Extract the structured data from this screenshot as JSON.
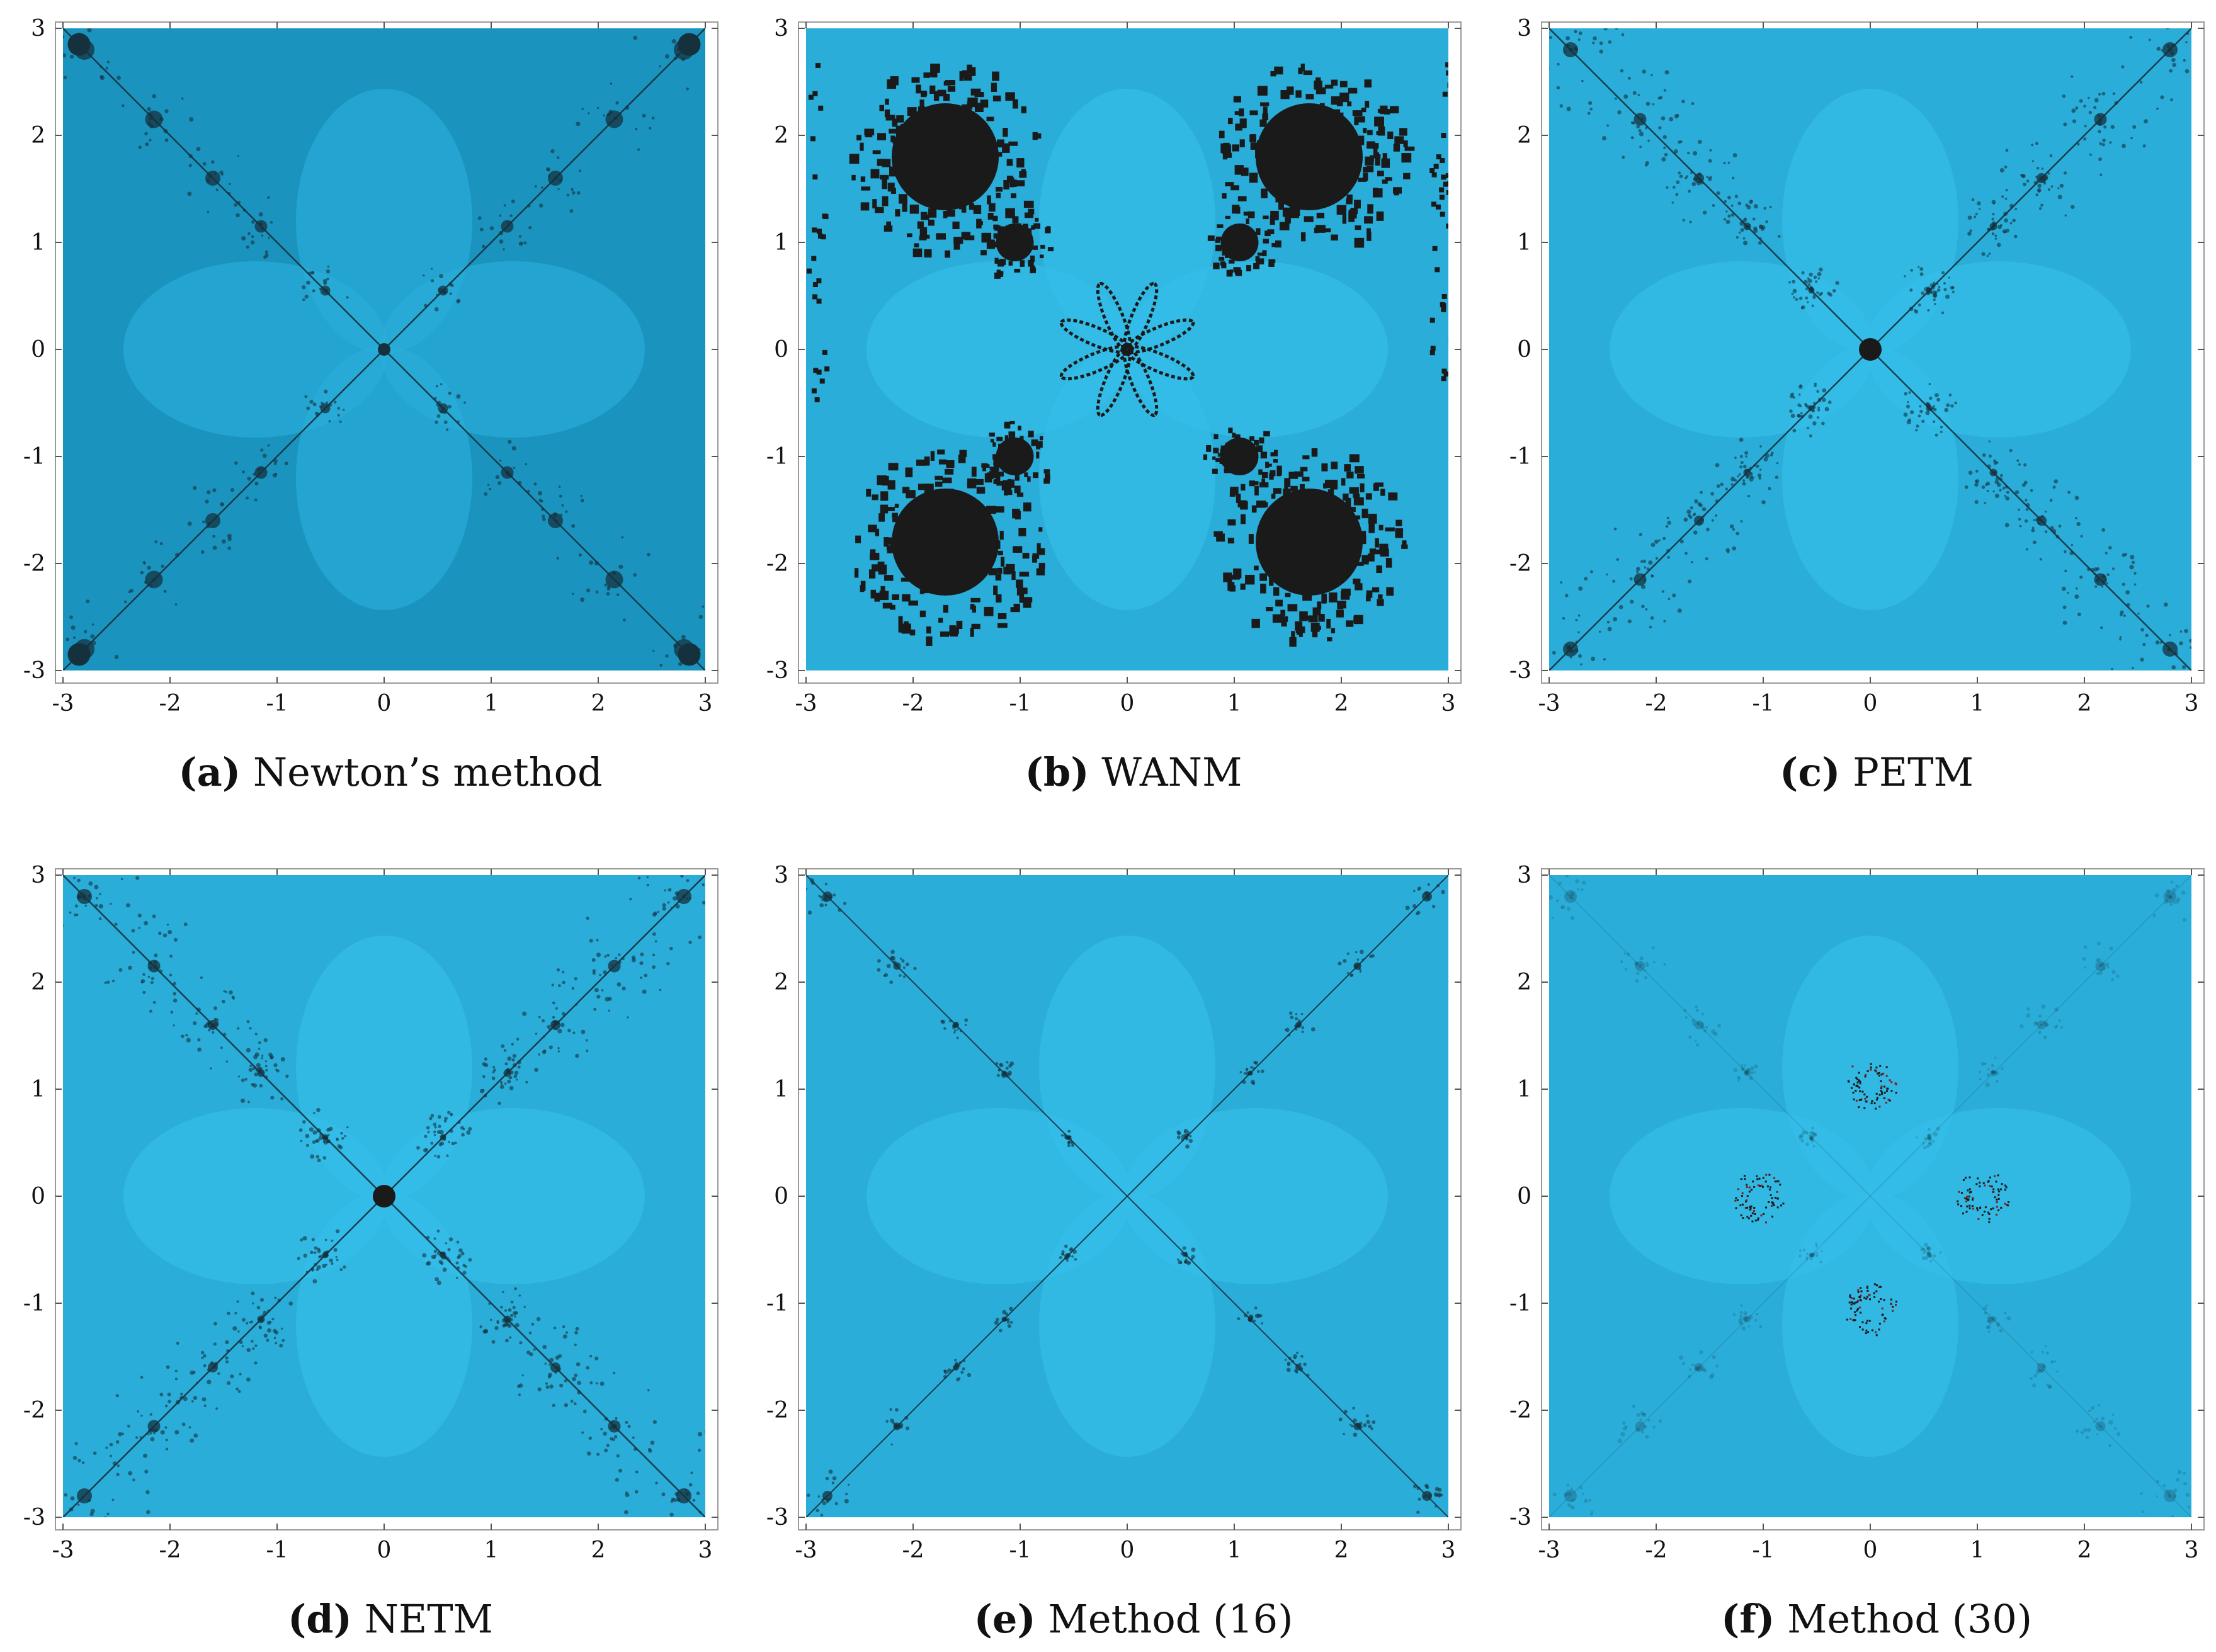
{
  "figure": {
    "panels": [
      {
        "id": "a",
        "letter_open": "(",
        "letter": "a",
        "letter_close": ")",
        "caption": "Newton’s method",
        "style": "newton"
      },
      {
        "id": "b",
        "letter_open": "(",
        "letter": "b",
        "letter_close": ")",
        "caption": "WANM",
        "style": "wanm"
      },
      {
        "id": "c",
        "letter_open": "(",
        "letter": "c",
        "letter_close": ")",
        "caption": "PETM",
        "style": "petm"
      },
      {
        "id": "d",
        "letter_open": "(",
        "letter": "d",
        "letter_close": ")",
        "caption": "NETM",
        "style": "netm"
      },
      {
        "id": "e",
        "letter_open": "(",
        "letter": "e",
        "letter_close": ")",
        "caption": "Method (16)",
        "style": "method16"
      },
      {
        "id": "f",
        "letter_open": "(",
        "letter": "f",
        "letter_close": ")",
        "caption": "Method (30)",
        "style": "method30"
      }
    ],
    "colors": {
      "basin_light": "#35bde8",
      "basin_mid": "#2aadd8",
      "basin_dark": "#1a94bf",
      "julia": "#15313d",
      "black": "#1a1a1a"
    }
  },
  "chart_data": [
    {
      "type": "heatmap",
      "panel": "a",
      "title": "Newton’s method",
      "xlim": [
        -3,
        3
      ],
      "ylim": [
        -3,
        3
      ],
      "xticks": [
        "-3",
        "-2",
        "-1",
        "0",
        "1",
        "2",
        "3"
      ],
      "yticks": [
        "3",
        "2",
        "1",
        "0",
        "-1",
        "-2",
        "-3"
      ],
      "grid": false
    },
    {
      "type": "heatmap",
      "panel": "b",
      "title": "WANM",
      "xlim": [
        -3,
        3
      ],
      "ylim": [
        -3,
        3
      ],
      "xticks": [
        "-3",
        "-2",
        "-1",
        "0",
        "1",
        "2",
        "3"
      ],
      "yticks": [
        "3",
        "2",
        "1",
        "0",
        "-1",
        "-2",
        "-3"
      ],
      "grid": false
    },
    {
      "type": "heatmap",
      "panel": "c",
      "title": "PETM",
      "xlim": [
        -3,
        3
      ],
      "ylim": [
        -3,
        3
      ],
      "xticks": [
        "-3",
        "-2",
        "-1",
        "0",
        "1",
        "2",
        "3"
      ],
      "yticks": [
        "3",
        "2",
        "1",
        "0",
        "-1",
        "-2",
        "-3"
      ],
      "grid": false
    },
    {
      "type": "heatmap",
      "panel": "d",
      "title": "NETM",
      "xlim": [
        -3,
        3
      ],
      "ylim": [
        -3,
        3
      ],
      "xticks": [
        "-3",
        "-2",
        "-1",
        "0",
        "1",
        "2",
        "3"
      ],
      "yticks": [
        "3",
        "2",
        "1",
        "0",
        "-1",
        "-2",
        "-3"
      ],
      "grid": false
    },
    {
      "type": "heatmap",
      "panel": "e",
      "title": "Method (16)",
      "xlim": [
        -3,
        3
      ],
      "ylim": [
        -3,
        3
      ],
      "xticks": [
        "-3",
        "-2",
        "-1",
        "0",
        "1",
        "2",
        "3"
      ],
      "yticks": [
        "3",
        "2",
        "1",
        "0",
        "-1",
        "-2",
        "-3"
      ],
      "grid": false
    },
    {
      "type": "heatmap",
      "panel": "f",
      "title": "Method (30)",
      "xlim": [
        -3,
        3
      ],
      "ylim": [
        -3,
        3
      ],
      "xticks": [
        "-3",
        "-2",
        "-1",
        "0",
        "1",
        "2",
        "3"
      ],
      "yticks": [
        "3",
        "2",
        "1",
        "0",
        "-1",
        "-2",
        "-3"
      ],
      "grid": false
    }
  ]
}
